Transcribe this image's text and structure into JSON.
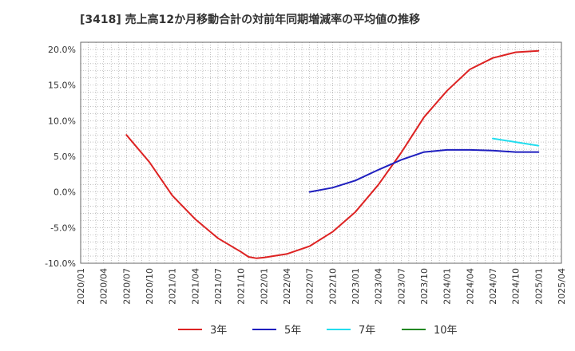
{
  "title": "[3418]  売上高12か月移動合計の対前年同期増減率の平均値の推移",
  "chart_data": {
    "type": "line",
    "title": "[3418]  売上高12か月移動合計の対前年同期増減率の平均値の推移",
    "xlabel": "",
    "ylabel": "",
    "x_ticks": [
      "2020/01",
      "2020/04",
      "2020/07",
      "2020/10",
      "2021/01",
      "2021/04",
      "2021/07",
      "2021/10",
      "2022/01",
      "2022/04",
      "2022/07",
      "2022/10",
      "2023/01",
      "2023/04",
      "2023/07",
      "2023/10",
      "2024/01",
      "2024/04",
      "2024/07",
      "2024/10",
      "2025/01",
      "2025/04"
    ],
    "y_ticks": [
      -10,
      -5,
      0,
      5,
      10,
      15,
      20
    ],
    "y_tick_labels": [
      "-10.0%",
      "-5.0%",
      "0.0%",
      "5.0%",
      "10.0%",
      "15.0%",
      "20.0%"
    ],
    "xlim": [
      "2020/01",
      "2025/04"
    ],
    "ylim": [
      -10,
      21
    ],
    "grid": true,
    "legend_position": "bottom",
    "series": [
      {
        "name": "3年",
        "color": "#dd2222",
        "points": [
          [
            "2020/07",
            8.0
          ],
          [
            "2020/10",
            4.2
          ],
          [
            "2021/01",
            -0.5
          ],
          [
            "2021/04",
            -3.8
          ],
          [
            "2021/07",
            -6.5
          ],
          [
            "2021/10",
            -8.4
          ],
          [
            "2021/11",
            -9.1
          ],
          [
            "2021/12",
            -9.3
          ],
          [
            "2022/01",
            -9.2
          ],
          [
            "2022/04",
            -8.7
          ],
          [
            "2022/07",
            -7.6
          ],
          [
            "2022/10",
            -5.6
          ],
          [
            "2023/01",
            -2.8
          ],
          [
            "2023/04",
            1.0
          ],
          [
            "2023/07",
            5.5
          ],
          [
            "2023/10",
            10.5
          ],
          [
            "2024/01",
            14.2
          ],
          [
            "2024/04",
            17.2
          ],
          [
            "2024/07",
            18.8
          ],
          [
            "2024/10",
            19.6
          ],
          [
            "2025/01",
            19.8
          ]
        ]
      },
      {
        "name": "5年",
        "color": "#1f1fbf",
        "points": [
          [
            "2022/07",
            0.0
          ],
          [
            "2022/10",
            0.6
          ],
          [
            "2023/01",
            1.6
          ],
          [
            "2023/04",
            3.1
          ],
          [
            "2023/07",
            4.5
          ],
          [
            "2023/10",
            5.6
          ],
          [
            "2024/01",
            5.9
          ],
          [
            "2024/04",
            5.9
          ],
          [
            "2024/07",
            5.8
          ],
          [
            "2024/10",
            5.6
          ],
          [
            "2025/01",
            5.6
          ]
        ]
      },
      {
        "name": "7年",
        "color": "#22ddee",
        "points": [
          [
            "2024/07",
            7.5
          ],
          [
            "2024/10",
            7.0
          ],
          [
            "2025/01",
            6.5
          ]
        ]
      },
      {
        "name": "10年",
        "color": "#228822",
        "points": []
      }
    ]
  }
}
